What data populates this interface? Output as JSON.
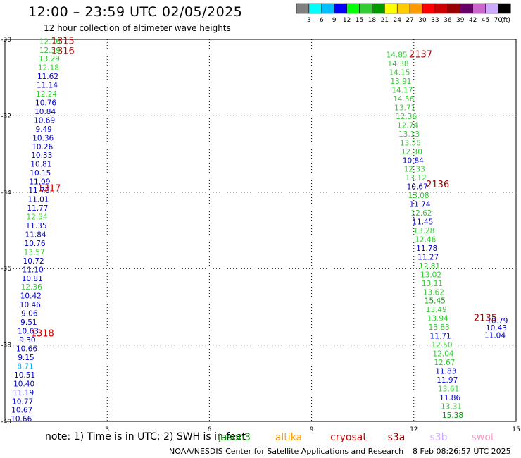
{
  "header": {
    "title": "12:00 – 23:59 UTC 02/05/2025",
    "subtitle": "12 hour collection of altimeter wave heights"
  },
  "colorbar": {
    "labels": [
      "3",
      "6",
      "9",
      "12",
      "15",
      "18",
      "21",
      "24",
      "27",
      "30",
      "33",
      "36",
      "39",
      "42",
      "45",
      "70"
    ],
    "unit": "(ft)",
    "colors": [
      "#808080",
      "#00ffff",
      "#00bfff",
      "#0000ff",
      "#00ff00",
      "#33cc33",
      "#009900",
      "#ffff00",
      "#ffcc00",
      "#ff9900",
      "#ff0000",
      "#cc0000",
      "#990000",
      "#660066",
      "#cc66cc",
      "#ccaaff",
      "#000000"
    ]
  },
  "footer": {
    "note": "note: 1) Time is in UTC; 2) SWH is in feet",
    "credit": "NOAA/NESDIS Center for Satellite Applications and Research",
    "timestamp": "8 Feb 08:26:57 UTC 2025"
  },
  "legend": [
    {
      "name": "jason3",
      "color": "#009900"
    },
    {
      "name": "altika",
      "color": "#ff9900"
    },
    {
      "name": "cryosat",
      "color": "#cc0000"
    },
    {
      "name": "s3a",
      "color": "#990000"
    },
    {
      "name": "s3b",
      "color": "#ccaaff"
    },
    {
      "name": "swot",
      "color": "#ff99cc"
    }
  ],
  "chart_data": {
    "type": "scatter",
    "title": "12:00 – 23:59 UTC 02/05/2025",
    "subtitle": "12 hour collection of altimeter wave heights",
    "xlim": [
      0,
      15
    ],
    "ylim": [
      -40,
      -30
    ],
    "x_ticks": [
      "3",
      "6",
      "9",
      "12",
      "15"
    ],
    "y_ticks": [
      "-30",
      "-32",
      "-34",
      "-36",
      "-38",
      "-40"
    ],
    "grid": true,
    "legend_placement": "bottom",
    "pass_labels": [
      {
        "label": "1315",
        "x": 1.7,
        "y": -30.05,
        "color": "#cc0000"
      },
      {
        "label": "1316",
        "x": 1.7,
        "y": -30.3,
        "color": "#cc0000"
      },
      {
        "label": "1317",
        "x": 1.3,
        "y": -33.9,
        "color": "#cc0000"
      },
      {
        "label": "1318",
        "x": 1.1,
        "y": -37.7,
        "color": "#cc0000"
      },
      {
        "label": "2137",
        "x": 12.2,
        "y": -30.4,
        "color": "#990000"
      },
      {
        "label": "2136",
        "x": 12.7,
        "y": -33.8,
        "color": "#990000"
      },
      {
        "label": "2135",
        "x": 14.1,
        "y": -37.3,
        "color": "#990000"
      }
    ],
    "series": [
      {
        "name": "track-left",
        "points": [
          {
            "x": 1.32,
            "y": -30.05,
            "v": "12.76",
            "c": "#33cc33"
          },
          {
            "x": 1.32,
            "y": -30.28,
            "v": "12.39",
            "c": "#33cc33"
          },
          {
            "x": 1.3,
            "y": -30.5,
            "v": "13.29",
            "c": "#33cc33"
          },
          {
            "x": 1.28,
            "y": -30.73,
            "v": "12.18",
            "c": "#33cc33"
          },
          {
            "x": 1.26,
            "y": -30.96,
            "v": "11.62",
            "c": "#0000cc"
          },
          {
            "x": 1.24,
            "y": -31.19,
            "v": "11.14",
            "c": "#0000cc"
          },
          {
            "x": 1.22,
            "y": -31.42,
            "v": "12.24",
            "c": "#33cc33"
          },
          {
            "x": 1.2,
            "y": -31.65,
            "v": "10.76",
            "c": "#0000cc"
          },
          {
            "x": 1.18,
            "y": -31.88,
            "v": "10.84",
            "c": "#0000cc"
          },
          {
            "x": 1.16,
            "y": -32.11,
            "v": "10.69",
            "c": "#0000cc"
          },
          {
            "x": 1.14,
            "y": -32.34,
            "v": "9.49",
            "c": "#0000cc"
          },
          {
            "x": 1.12,
            "y": -32.57,
            "v": "10.36",
            "c": "#0000cc"
          },
          {
            "x": 1.1,
            "y": -32.8,
            "v": "10.26",
            "c": "#0000cc"
          },
          {
            "x": 1.08,
            "y": -33.03,
            "v": "10.33",
            "c": "#0000cc"
          },
          {
            "x": 1.06,
            "y": -33.26,
            "v": "10.81",
            "c": "#0000cc"
          },
          {
            "x": 1.04,
            "y": -33.49,
            "v": "10.15",
            "c": "#0000cc"
          },
          {
            "x": 1.02,
            "y": -33.72,
            "v": "11.09",
            "c": "#0000cc"
          },
          {
            "x": 1.0,
            "y": -33.95,
            "v": "11.76",
            "c": "#0000cc"
          },
          {
            "x": 0.98,
            "y": -34.18,
            "v": "11.01",
            "c": "#0000cc"
          },
          {
            "x": 0.96,
            "y": -34.41,
            "v": "11.77",
            "c": "#0000cc"
          },
          {
            "x": 0.94,
            "y": -34.64,
            "v": "12.54",
            "c": "#33cc33"
          },
          {
            "x": 0.92,
            "y": -34.87,
            "v": "11.35",
            "c": "#0000cc"
          },
          {
            "x": 0.9,
            "y": -35.1,
            "v": "11.84",
            "c": "#0000cc"
          },
          {
            "x": 0.88,
            "y": -35.33,
            "v": "10.76",
            "c": "#0000cc"
          },
          {
            "x": 0.86,
            "y": -35.56,
            "v": "13.57",
            "c": "#33cc33"
          },
          {
            "x": 0.84,
            "y": -35.79,
            "v": "10.72",
            "c": "#0000cc"
          },
          {
            "x": 0.82,
            "y": -36.02,
            "v": "11.10",
            "c": "#0000cc"
          },
          {
            "x": 0.8,
            "y": -36.25,
            "v": "10.81",
            "c": "#0000cc"
          },
          {
            "x": 0.78,
            "y": -36.48,
            "v": "12.36",
            "c": "#33cc33"
          },
          {
            "x": 0.76,
            "y": -36.71,
            "v": "10.42",
            "c": "#0000cc"
          },
          {
            "x": 0.74,
            "y": -36.94,
            "v": "10.46",
            "c": "#0000cc"
          },
          {
            "x": 0.72,
            "y": -37.17,
            "v": "9.06",
            "c": "#0000cc"
          },
          {
            "x": 0.7,
            "y": -37.4,
            "v": "9.51",
            "c": "#0000cc"
          },
          {
            "x": 0.68,
            "y": -37.63,
            "v": "10.63",
            "c": "#0000cc"
          },
          {
            "x": 0.66,
            "y": -37.86,
            "v": "9.30",
            "c": "#0000cc"
          },
          {
            "x": 0.64,
            "y": -38.09,
            "v": "10.66",
            "c": "#0000cc"
          },
          {
            "x": 0.62,
            "y": -38.32,
            "v": "9.15",
            "c": "#0000cc"
          },
          {
            "x": 0.6,
            "y": -38.55,
            "v": "8.71",
            "c": "#00aaff"
          },
          {
            "x": 0.58,
            "y": -38.78,
            "v": "10.51",
            "c": "#0000cc"
          },
          {
            "x": 0.56,
            "y": -39.01,
            "v": "10.40",
            "c": "#0000cc"
          },
          {
            "x": 0.54,
            "y": -39.24,
            "v": "11.19",
            "c": "#0000cc"
          },
          {
            "x": 0.52,
            "y": -39.47,
            "v": "10.77",
            "c": "#0000cc"
          },
          {
            "x": 0.5,
            "y": -39.7,
            "v": "10.67",
            "c": "#0000cc"
          },
          {
            "x": 0.48,
            "y": -39.93,
            "v": "10.66",
            "c": "#0000cc"
          }
        ]
      },
      {
        "name": "track-right",
        "points": [
          {
            "x": 11.5,
            "y": -30.4,
            "v": "14.85",
            "c": "#33cc33"
          },
          {
            "x": 11.54,
            "y": -30.63,
            "v": "14.38",
            "c": "#33cc33"
          },
          {
            "x": 11.58,
            "y": -30.86,
            "v": "14.15",
            "c": "#33cc33"
          },
          {
            "x": 11.62,
            "y": -31.09,
            "v": "13.91",
            "c": "#33cc33"
          },
          {
            "x": 11.66,
            "y": -31.32,
            "v": "14.17",
            "c": "#33cc33"
          },
          {
            "x": 11.7,
            "y": -31.55,
            "v": "14.56",
            "c": "#33cc33"
          },
          {
            "x": 11.74,
            "y": -31.78,
            "v": "13.71",
            "c": "#33cc33"
          },
          {
            "x": 11.78,
            "y": -32.01,
            "v": "12.36",
            "c": "#33cc33"
          },
          {
            "x": 11.82,
            "y": -32.24,
            "v": "12.74",
            "c": "#33cc33"
          },
          {
            "x": 11.86,
            "y": -32.47,
            "v": "13.13",
            "c": "#33cc33"
          },
          {
            "x": 11.9,
            "y": -32.7,
            "v": "13.55",
            "c": "#33cc33"
          },
          {
            "x": 11.94,
            "y": -32.93,
            "v": "12.30",
            "c": "#33cc33"
          },
          {
            "x": 11.98,
            "y": -33.16,
            "v": "10.84",
            "c": "#0000cc"
          },
          {
            "x": 12.02,
            "y": -33.39,
            "v": "12.33",
            "c": "#33cc33"
          },
          {
            "x": 12.06,
            "y": -33.62,
            "v": "13.12",
            "c": "#33cc33"
          },
          {
            "x": 12.1,
            "y": -33.85,
            "v": "10.67",
            "c": "#0000cc"
          },
          {
            "x": 12.14,
            "y": -34.08,
            "v": "13.08",
            "c": "#33cc33"
          },
          {
            "x": 12.18,
            "y": -34.31,
            "v": "11.74",
            "c": "#0000cc"
          },
          {
            "x": 12.22,
            "y": -34.54,
            "v": "12.62",
            "c": "#33cc33"
          },
          {
            "x": 12.26,
            "y": -34.77,
            "v": "11.45",
            "c": "#0000cc"
          },
          {
            "x": 12.3,
            "y": -35.0,
            "v": "13.28",
            "c": "#33cc33"
          },
          {
            "x": 12.34,
            "y": -35.23,
            "v": "12.46",
            "c": "#33cc33"
          },
          {
            "x": 12.38,
            "y": -35.46,
            "v": "11.78",
            "c": "#0000cc"
          },
          {
            "x": 12.42,
            "y": -35.69,
            "v": "11.27",
            "c": "#0000cc"
          },
          {
            "x": 12.46,
            "y": -35.92,
            "v": "12.81",
            "c": "#33cc33"
          },
          {
            "x": 12.5,
            "y": -36.15,
            "v": "13.02",
            "c": "#33cc33"
          },
          {
            "x": 12.54,
            "y": -36.38,
            "v": "13.11",
            "c": "#33cc33"
          },
          {
            "x": 12.58,
            "y": -36.61,
            "v": "13.62",
            "c": "#33cc33"
          },
          {
            "x": 12.62,
            "y": -36.84,
            "v": "15.45",
            "c": "#009900"
          },
          {
            "x": 12.66,
            "y": -37.07,
            "v": "13.49",
            "c": "#33cc33"
          },
          {
            "x": 12.7,
            "y": -37.3,
            "v": "13.94",
            "c": "#33cc33"
          },
          {
            "x": 12.74,
            "y": -37.53,
            "v": "13.83",
            "c": "#33cc33"
          },
          {
            "x": 12.78,
            "y": -37.76,
            "v": "11.71",
            "c": "#0000cc"
          },
          {
            "x": 12.82,
            "y": -37.99,
            "v": "12.50",
            "c": "#33cc33"
          },
          {
            "x": 12.86,
            "y": -38.22,
            "v": "12.04",
            "c": "#33cc33"
          },
          {
            "x": 12.9,
            "y": -38.45,
            "v": "12.67",
            "c": "#33cc33"
          },
          {
            "x": 12.94,
            "y": -38.68,
            "v": "11.83",
            "c": "#0000cc"
          },
          {
            "x": 12.98,
            "y": -38.91,
            "v": "11.97",
            "c": "#0000cc"
          },
          {
            "x": 13.02,
            "y": -39.14,
            "v": "13.61",
            "c": "#33cc33"
          },
          {
            "x": 13.06,
            "y": -39.37,
            "v": "11.86",
            "c": "#0000cc"
          },
          {
            "x": 13.1,
            "y": -39.6,
            "v": "13.31",
            "c": "#33cc33"
          },
          {
            "x": 13.14,
            "y": -39.83,
            "v": "15.38",
            "c": "#009900"
          }
        ]
      },
      {
        "name": "track-far-right",
        "points": [
          {
            "x": 14.45,
            "y": -37.36,
            "v": "10.79",
            "c": "#0000cc"
          },
          {
            "x": 14.42,
            "y": -37.55,
            "v": "10.43",
            "c": "#0000cc"
          },
          {
            "x": 14.38,
            "y": -37.74,
            "v": "11.04",
            "c": "#0000cc"
          }
        ]
      }
    ]
  }
}
